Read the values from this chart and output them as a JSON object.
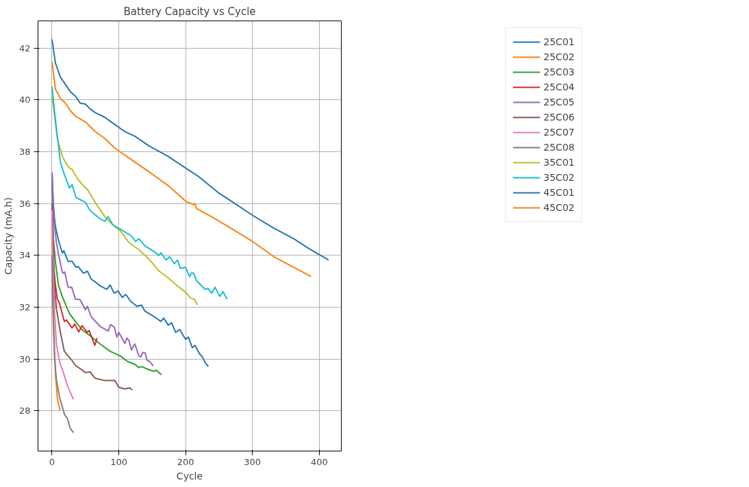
{
  "chart_data": {
    "type": "line",
    "title": "Battery Capacity vs Cycle",
    "xlabel": "Cycle",
    "ylabel": "Capacity (mA.h)",
    "xlim": [
      -21,
      433
    ],
    "ylim": [
      26.45,
      43.05
    ],
    "xticks": [
      0,
      100,
      200,
      300,
      400
    ],
    "yticks": [
      28,
      30,
      32,
      34,
      36,
      38,
      40,
      42
    ],
    "grid": true,
    "legend": "top right",
    "line_style": "solid",
    "series": [
      {
        "name": "25C01",
        "color": "#1f77b4",
        "x": [
          0,
          2,
          3.5,
          5,
          9.5,
          15.5,
          17.7,
          24,
          30,
          36,
          39,
          47,
          53,
          58.5,
          73,
          82,
          87,
          93,
          99,
          105,
          110.5,
          118,
          127,
          134,
          139,
          151,
          163,
          167,
          174,
          179,
          185,
          191,
          200,
          204,
          210,
          214,
          220.5,
          225,
          229.5,
          234
        ],
        "values": [
          37.2,
          36.0,
          35.5,
          35.14,
          34.59,
          34.09,
          34.18,
          33.77,
          33.77,
          33.54,
          33.57,
          33.31,
          33.39,
          33.09,
          32.81,
          32.69,
          32.86,
          32.54,
          32.63,
          32.38,
          32.49,
          32.22,
          32.04,
          32.08,
          31.85,
          31.67,
          31.45,
          31.58,
          31.31,
          31.4,
          31.03,
          31.14,
          30.76,
          30.85,
          30.44,
          30.53,
          30.21,
          30.08,
          29.85,
          29.71
        ]
      },
      {
        "name": "25C02",
        "color": "#ff7f0e",
        "x": [
          0,
          1.3,
          2.8,
          5,
          8,
          11.7
        ],
        "values": [
          35.14,
          32.86,
          31.03,
          29.48,
          28.48,
          28.03
        ]
      },
      {
        "name": "25C03",
        "color": "#2ca02c",
        "x": [
          0,
          2,
          5,
          9.5,
          15.5,
          26,
          35,
          45,
          57,
          72,
          87,
          102,
          113.5,
          124,
          130,
          134,
          145,
          152,
          156,
          164
        ],
        "values": [
          36.8,
          34.68,
          33.77,
          32.86,
          32.4,
          31.76,
          31.45,
          31.13,
          30.9,
          30.58,
          30.3,
          30.12,
          29.9,
          29.8,
          29.67,
          29.71,
          29.59,
          29.53,
          29.57,
          29.39
        ]
      },
      {
        "name": "25C04",
        "color": "#d62728",
        "x": [
          0,
          2,
          5,
          8,
          11,
          18.4,
          21.4,
          30,
          34,
          40,
          45,
          52.6,
          55.6,
          64,
          67.5
        ],
        "values": [
          36.0,
          33.77,
          32.86,
          32.31,
          32.17,
          31.45,
          31.51,
          31.2,
          31.35,
          31.05,
          31.29,
          31.03,
          31.1,
          30.53,
          30.81
        ]
      },
      {
        "name": "25C05",
        "color": "#9467bd",
        "x": [
          0,
          2,
          6.5,
          12.5,
          16,
          19,
          24,
          29.5,
          35,
          42,
          50,
          53,
          58.5,
          72,
          84,
          87.5,
          93,
          97,
          100,
          109,
          112,
          115,
          119,
          122.5,
          124,
          130,
          133,
          136,
          139.5,
          142.5,
          146,
          151.5
        ],
        "values": [
          37.2,
          35.59,
          34.5,
          33.68,
          33.31,
          33.36,
          32.77,
          32.77,
          32.31,
          32.29,
          31.9,
          32.04,
          31.63,
          31.26,
          31.08,
          31.33,
          31.24,
          30.85,
          31.03,
          30.6,
          30.81,
          30.72,
          30.35,
          30.53,
          30.58,
          30.12,
          30.08,
          30.26,
          30.23,
          29.94,
          29.92,
          29.73
        ]
      },
      {
        "name": "25C06",
        "color": "#8c564b",
        "x": [
          0,
          3.6,
          6.5,
          12.5,
          18.4,
          30,
          35,
          50,
          57,
          64.5,
          79,
          94,
          100,
          109,
          116.5,
          120
        ],
        "values": [
          36.0,
          32.86,
          31.95,
          31.03,
          30.3,
          29.94,
          29.76,
          29.48,
          29.5,
          29.26,
          29.17,
          29.17,
          28.91,
          28.85,
          28.89,
          28.8
        ]
      },
      {
        "name": "25C07",
        "color": "#e377c2",
        "x": [
          0,
          1.3,
          3.6,
          6.5,
          11.7,
          17,
          23,
          32
        ],
        "values": [
          35.74,
          33.77,
          31.95,
          30.58,
          29.85,
          29.48,
          28.98,
          28.44
        ]
      },
      {
        "name": "25C08",
        "color": "#7f7f7f",
        "x": [
          0,
          1.3,
          3.6,
          6.5,
          11.7,
          19,
          23,
          27,
          32
        ],
        "values": [
          34.0,
          31.95,
          30.12,
          29.21,
          28.48,
          27.84,
          27.71,
          27.34,
          27.16
        ]
      },
      {
        "name": "35C01",
        "color": "#bcbd22",
        "x": [
          0,
          3.6,
          8,
          15.5,
          20,
          26,
          30,
          38,
          47,
          53,
          64.5,
          79,
          91,
          102,
          115,
          130,
          145,
          160,
          174,
          186,
          200,
          207,
          213,
          218
        ],
        "values": [
          40.15,
          39.42,
          38.51,
          37.82,
          37.6,
          37.37,
          37.32,
          36.96,
          36.69,
          36.55,
          36.05,
          35.5,
          35.18,
          34.95,
          34.5,
          34.22,
          33.86,
          33.4,
          33.13,
          32.86,
          32.58,
          32.36,
          32.31,
          32.08
        ]
      },
      {
        "name": "35C02",
        "color": "#17becf",
        "x": [
          0,
          5,
          12.5,
          17,
          26,
          30,
          36,
          50,
          57,
          72,
          79,
          84,
          91,
          106,
          118,
          125,
          130,
          139,
          151,
          160,
          163,
          171,
          176,
          183,
          188,
          192,
          200,
          206,
          209,
          212,
          216,
          229,
          234,
          239,
          244,
          251,
          256,
          262
        ],
        "values": [
          40.51,
          39.24,
          37.6,
          37.23,
          36.6,
          36.73,
          36.23,
          36.05,
          35.73,
          35.41,
          35.32,
          35.5,
          35.18,
          34.95,
          34.77,
          34.54,
          34.64,
          34.37,
          34.18,
          34.0,
          34.1,
          33.82,
          33.95,
          33.68,
          33.82,
          33.5,
          33.54,
          33.18,
          33.33,
          33.31,
          33.04,
          32.69,
          32.72,
          32.54,
          32.77,
          32.42,
          32.6,
          32.31
        ]
      },
      {
        "name": "45C01",
        "color": "#1f77b4",
        "x": [
          0,
          5,
          12.5,
          20,
          27,
          35,
          42,
          50,
          57,
          64.5,
          79,
          94,
          109,
          124,
          145,
          174,
          200,
          219,
          249,
          271,
          300,
          332,
          362,
          384,
          414
        ],
        "values": [
          42.34,
          41.43,
          40.88,
          40.6,
          40.33,
          40.15,
          39.88,
          39.84,
          39.65,
          39.51,
          39.33,
          39.05,
          38.78,
          38.6,
          38.23,
          37.82,
          37.37,
          37.05,
          36.42,
          36.05,
          35.55,
          35.05,
          34.64,
          34.27,
          33.82
        ]
      },
      {
        "name": "45C02",
        "color": "#ff7f0e",
        "x": [
          0,
          5,
          12.5,
          20,
          27,
          35,
          50,
          64.5,
          79,
          94,
          109,
          124,
          145,
          174,
          200,
          212,
          214,
          216,
          241,
          271,
          300,
          332,
          362,
          388
        ],
        "values": [
          41.47,
          40.42,
          40.06,
          39.88,
          39.6,
          39.37,
          39.15,
          38.78,
          38.51,
          38.14,
          37.87,
          37.6,
          37.23,
          36.69,
          36.09,
          35.96,
          36.0,
          35.82,
          35.46,
          35.0,
          34.54,
          33.95,
          33.54,
          33.18
        ]
      }
    ]
  }
}
